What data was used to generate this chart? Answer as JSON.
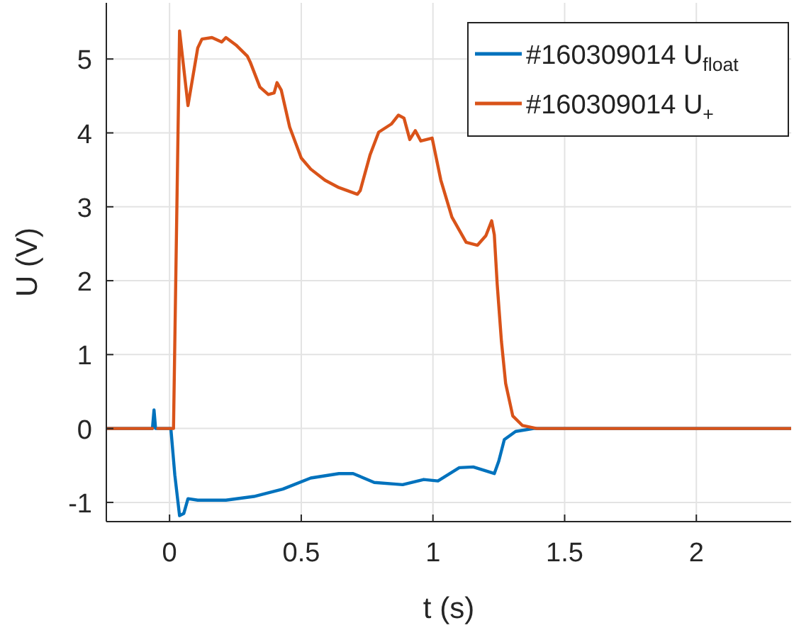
{
  "chart_data": {
    "type": "line",
    "xlabel": "t (s)",
    "ylabel": "U (V)",
    "xlim": [
      -0.24,
      2.36
    ],
    "ylim": [
      -1.26,
      5.76
    ],
    "xticks": [
      0,
      0.5,
      1,
      1.5,
      2
    ],
    "yticks": [
      -1,
      0,
      1,
      2,
      3,
      4,
      5
    ],
    "grid": true,
    "legend": "top right",
    "line_style": "solid",
    "marker": "none",
    "series": [
      {
        "name": "#160309014 U$_{float}$",
        "color": "#0072bd",
        "x": [
          -0.24,
          -0.065,
          -0.059,
          -0.053,
          0.005,
          0.02,
          0.038,
          0.054,
          0.07,
          0.107,
          0.214,
          0.32,
          0.43,
          0.536,
          0.643,
          0.697,
          0.777,
          0.885,
          0.965,
          1.019,
          1.1,
          1.153,
          1.233,
          1.25,
          1.271,
          1.314,
          1.383,
          1.8,
          2.36
        ],
        "values": [
          0,
          0,
          0.25,
          0,
          0,
          -0.63,
          -1.18,
          -1.15,
          -0.95,
          -0.97,
          -0.97,
          -0.92,
          -0.82,
          -0.67,
          -0.61,
          -0.61,
          -0.73,
          -0.76,
          -0.69,
          -0.71,
          -0.53,
          -0.52,
          -0.61,
          -0.44,
          -0.15,
          -0.04,
          0,
          0,
          0
        ]
      },
      {
        "name": "#160309014 U$_{+}$",
        "color": "#d95319",
        "x": [
          -0.24,
          -0.065,
          -0.06,
          -0.05,
          -0.045,
          0.015,
          0.038,
          0.07,
          0.107,
          0.123,
          0.161,
          0.198,
          0.214,
          0.252,
          0.295,
          0.306,
          0.343,
          0.375,
          0.397,
          0.408,
          0.424,
          0.456,
          0.5,
          0.536,
          0.59,
          0.643,
          0.713,
          0.724,
          0.761,
          0.794,
          0.842,
          0.869,
          0.89,
          0.912,
          0.933,
          0.954,
          0.997,
          1.03,
          1.072,
          1.126,
          1.169,
          1.201,
          1.223,
          1.233,
          1.244,
          1.26,
          1.276,
          1.303,
          1.34,
          1.394,
          2.36
        ],
        "values": [
          0,
          0,
          null,
          null,
          0,
          0,
          5.38,
          4.37,
          5.15,
          5.27,
          5.29,
          5.23,
          5.29,
          5.19,
          5.04,
          4.96,
          4.62,
          4.52,
          4.54,
          4.68,
          4.58,
          4.08,
          3.66,
          3.51,
          3.36,
          3.26,
          3.17,
          3.22,
          3.7,
          4.01,
          4.12,
          4.24,
          4.2,
          3.91,
          4.03,
          3.89,
          3.93,
          3.36,
          2.86,
          2.52,
          2.48,
          2.61,
          2.81,
          2.62,
          1.95,
          1.18,
          0.61,
          0.17,
          0.04,
          0,
          0
        ]
      }
    ]
  }
}
